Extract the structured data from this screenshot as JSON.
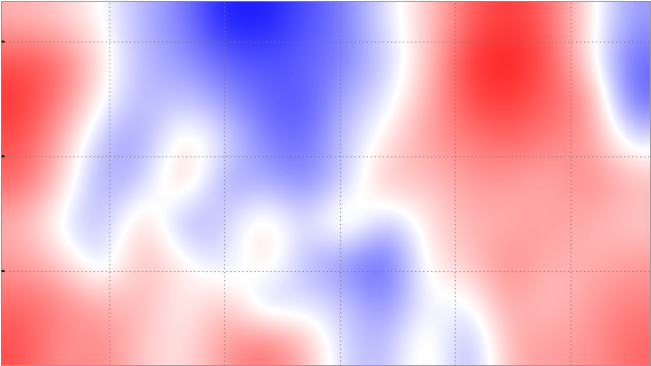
{
  "chart_data": {
    "type": "heatmap",
    "color": "bwr",
    "color_range": [
      -1,
      1
    ],
    "xlim": [
      0,
      720
    ],
    "ylim": [
      405,
      0
    ],
    "xticks": [
      120,
      248,
      376,
      504,
      632
    ],
    "yticks": [
      45,
      173,
      301
    ],
    "grid": true,
    "tick_labels": false,
    "cells": [
      [
        0.3,
        0.2,
        0.0,
        -0.3,
        -0.5,
        -0.9,
        -0.9,
        -0.7,
        -0.5,
        -0.1,
        0.2,
        0.6,
        0.8,
        0.6,
        0.1,
        -0.4
      ],
      [
        0.7,
        0.6,
        0.1,
        -0.3,
        -0.4,
        -0.6,
        -0.7,
        -0.6,
        -0.5,
        -0.2,
        0.2,
        0.8,
        0.9,
        0.7,
        0.1,
        -0.6
      ],
      [
        0.8,
        0.5,
        0.0,
        -0.3,
        -0.2,
        -0.4,
        -0.6,
        -0.7,
        -0.3,
        -0.1,
        0.3,
        0.7,
        0.8,
        0.6,
        0.5,
        -0.6
      ],
      [
        0.7,
        0.3,
        -0.3,
        -0.4,
        0.2,
        -0.1,
        -0.5,
        -0.6,
        -0.2,
        0.1,
        0.4,
        0.5,
        0.6,
        0.5,
        0.4,
        -0.1
      ],
      [
        0.6,
        0.2,
        -0.4,
        -0.2,
        0.3,
        -0.4,
        -0.3,
        -0.5,
        -0.2,
        0.3,
        0.2,
        0.4,
        0.4,
        0.3,
        0.5,
        0.3
      ],
      [
        0.3,
        -0.1,
        -0.3,
        0.3,
        -0.4,
        -0.2,
        0.2,
        -0.2,
        0.3,
        -0.3,
        0.1,
        0.3,
        0.3,
        0.4,
        0.3,
        0.2
      ],
      [
        0.4,
        0.2,
        -0.2,
        0.3,
        0.1,
        -0.2,
        0.2,
        -0.3,
        -0.5,
        -0.7,
        0.1,
        0.2,
        0.5,
        0.3,
        0.3,
        0.4
      ],
      [
        0.6,
        0.5,
        0.3,
        0.3,
        0.0,
        0.3,
        -0.3,
        -0.1,
        -0.2,
        -0.5,
        0.0,
        -0.1,
        0.4,
        0.2,
        0.4,
        0.5
      ],
      [
        0.7,
        0.4,
        0.5,
        0.2,
        0.1,
        0.4,
        0.6,
        0.3,
        -0.2,
        -0.3,
        0.2,
        -0.4,
        0.3,
        0.4,
        0.4,
        0.6
      ]
    ]
  }
}
